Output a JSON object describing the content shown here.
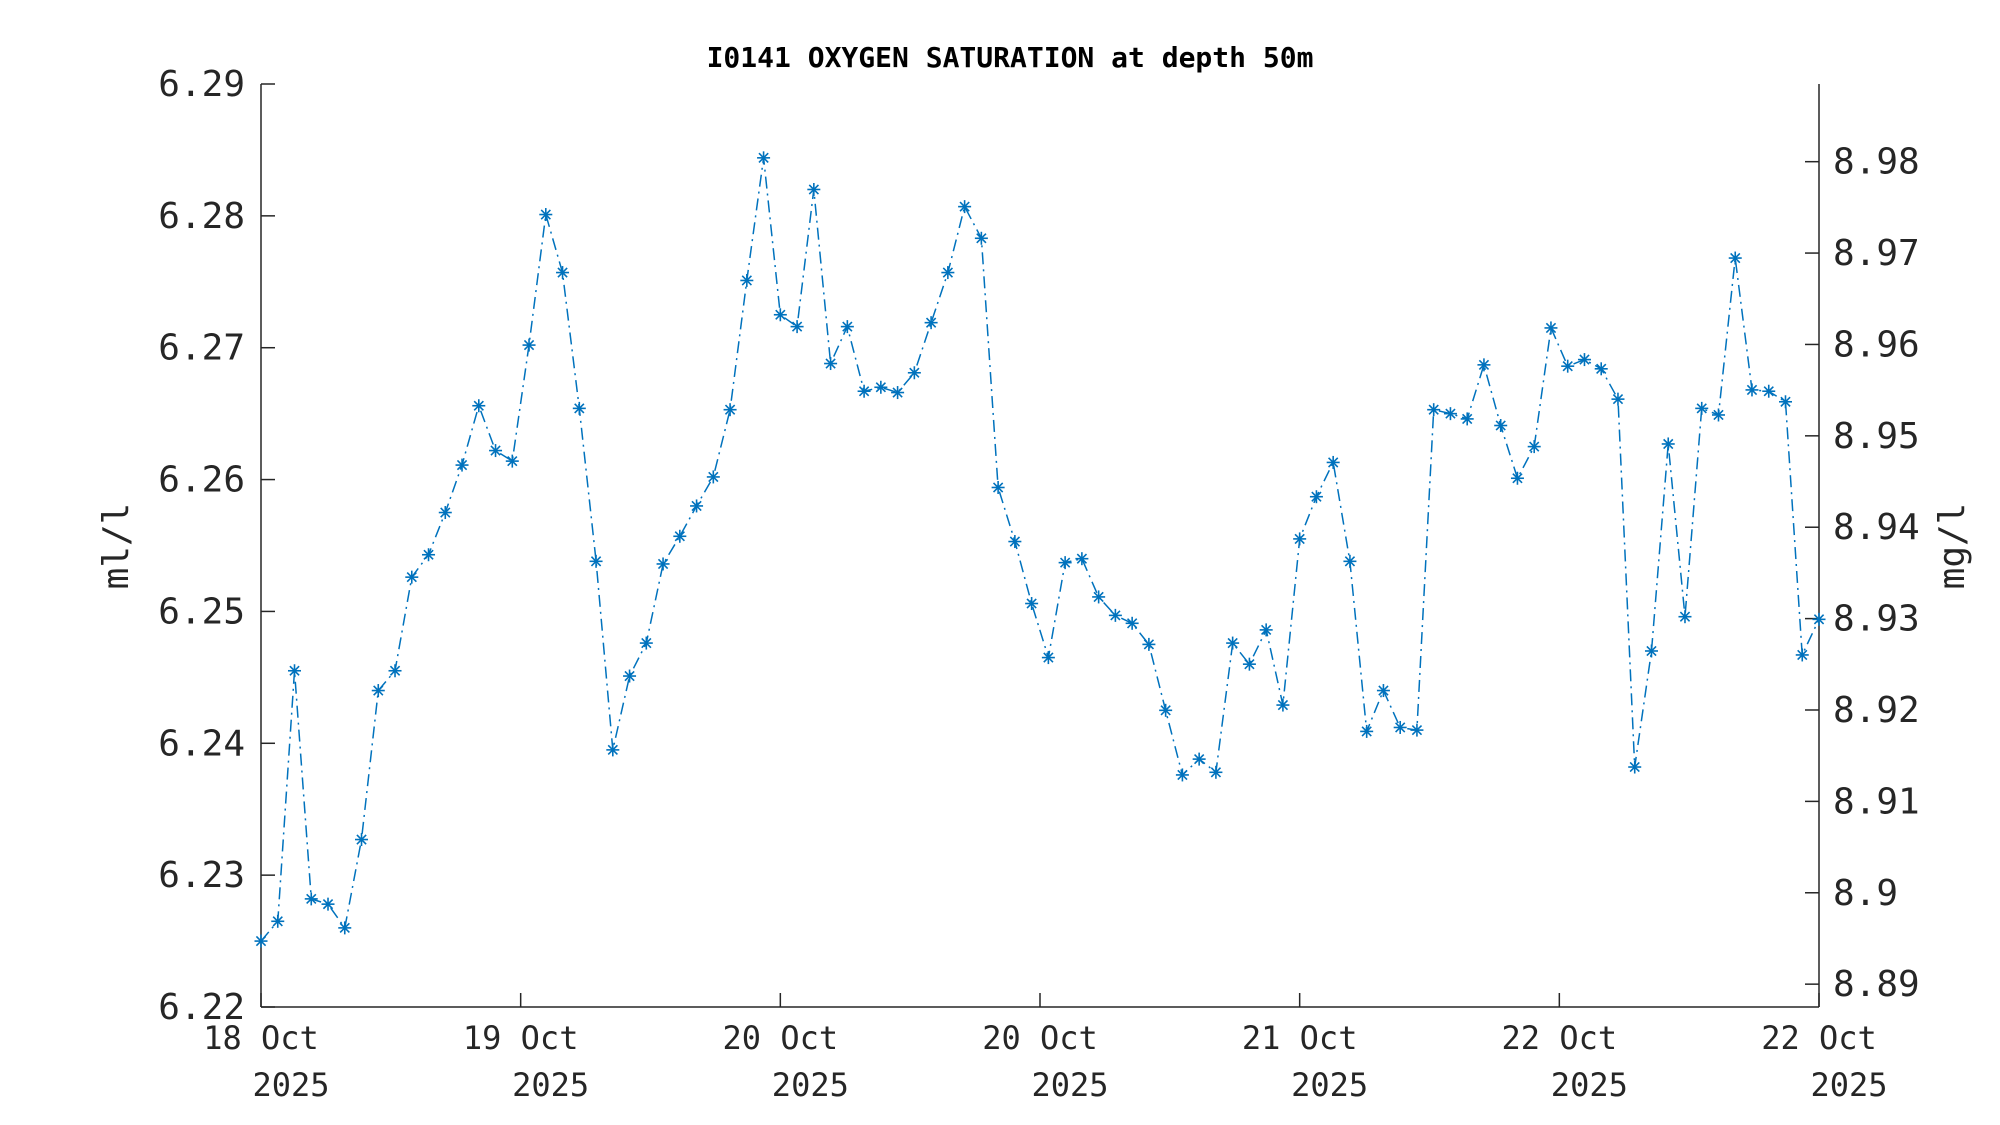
{
  "chart_data": {
    "type": "line",
    "title": "I0141 OXYGEN SATURATION at depth 50m",
    "ylabel": "ml/l",
    "ylabel_right": "mg/l",
    "ylim": [
      6.22,
      6.29
    ],
    "yticks": [
      "6.22",
      "6.23",
      "6.24",
      "6.25",
      "6.26",
      "6.27",
      "6.28",
      "6.29"
    ],
    "ylim_right": [
      8.8875,
      8.9885
    ],
    "yticks_right": [
      "8.89",
      "8.9",
      "8.91",
      "8.92",
      "8.93",
      "8.94",
      "8.95",
      "8.96",
      "8.97",
      "8.98"
    ],
    "xticks": [
      {
        "day": "18 Oct",
        "year": "2025"
      },
      {
        "day": "19 Oct",
        "year": "2025"
      },
      {
        "day": "20 Oct",
        "year": "2025"
      },
      {
        "day": "20 Oct",
        "year": "2025"
      },
      {
        "day": "21 Oct",
        "year": "2025"
      },
      {
        "day": "22 Oct",
        "year": "2025"
      },
      {
        "day": "22 Oct",
        "year": "2025"
      }
    ],
    "marker": "asterisk",
    "line_style": "dash-dot",
    "color": "#0072BD",
    "grid": false,
    "series": [
      {
        "values": [
          6.225,
          6.2265,
          6.2455,
          6.2282,
          6.2278,
          6.226,
          6.2327,
          6.244,
          6.2455,
          6.2526,
          6.2543,
          6.2575,
          6.2611,
          6.2656,
          6.2622,
          6.2614,
          6.2702,
          6.2801,
          6.2757,
          6.2654,
          6.2538,
          6.2395,
          6.2451,
          6.2476,
          6.2536,
          6.2557,
          6.258,
          6.2602,
          6.2653,
          6.2751,
          6.2844,
          6.2725,
          6.2716,
          6.282,
          6.2688,
          6.2716,
          6.2667,
          6.267,
          6.2666,
          6.2681,
          6.2719,
          6.2757,
          6.2807,
          6.2783,
          6.2594,
          6.2553,
          6.2506,
          6.2465,
          6.2537,
          6.254,
          6.2511,
          6.2497,
          6.2491,
          6.2475,
          6.2425,
          6.2376,
          6.2388,
          6.2378,
          6.2476,
          6.246,
          6.2486,
          6.2429,
          6.2555,
          6.2587,
          6.2613,
          6.2538,
          6.2409,
          6.244,
          6.2412,
          6.241,
          6.2653,
          6.265,
          6.2646,
          6.2687,
          6.2641,
          6.2601,
          6.2625,
          6.2715,
          6.2686,
          6.2691,
          6.2684,
          6.2661,
          6.2382,
          6.247,
          6.2627,
          6.2496,
          6.2654,
          6.2649,
          6.2768,
          6.2668,
          6.2667,
          6.2659,
          6.2467,
          6.2494
        ]
      }
    ]
  }
}
